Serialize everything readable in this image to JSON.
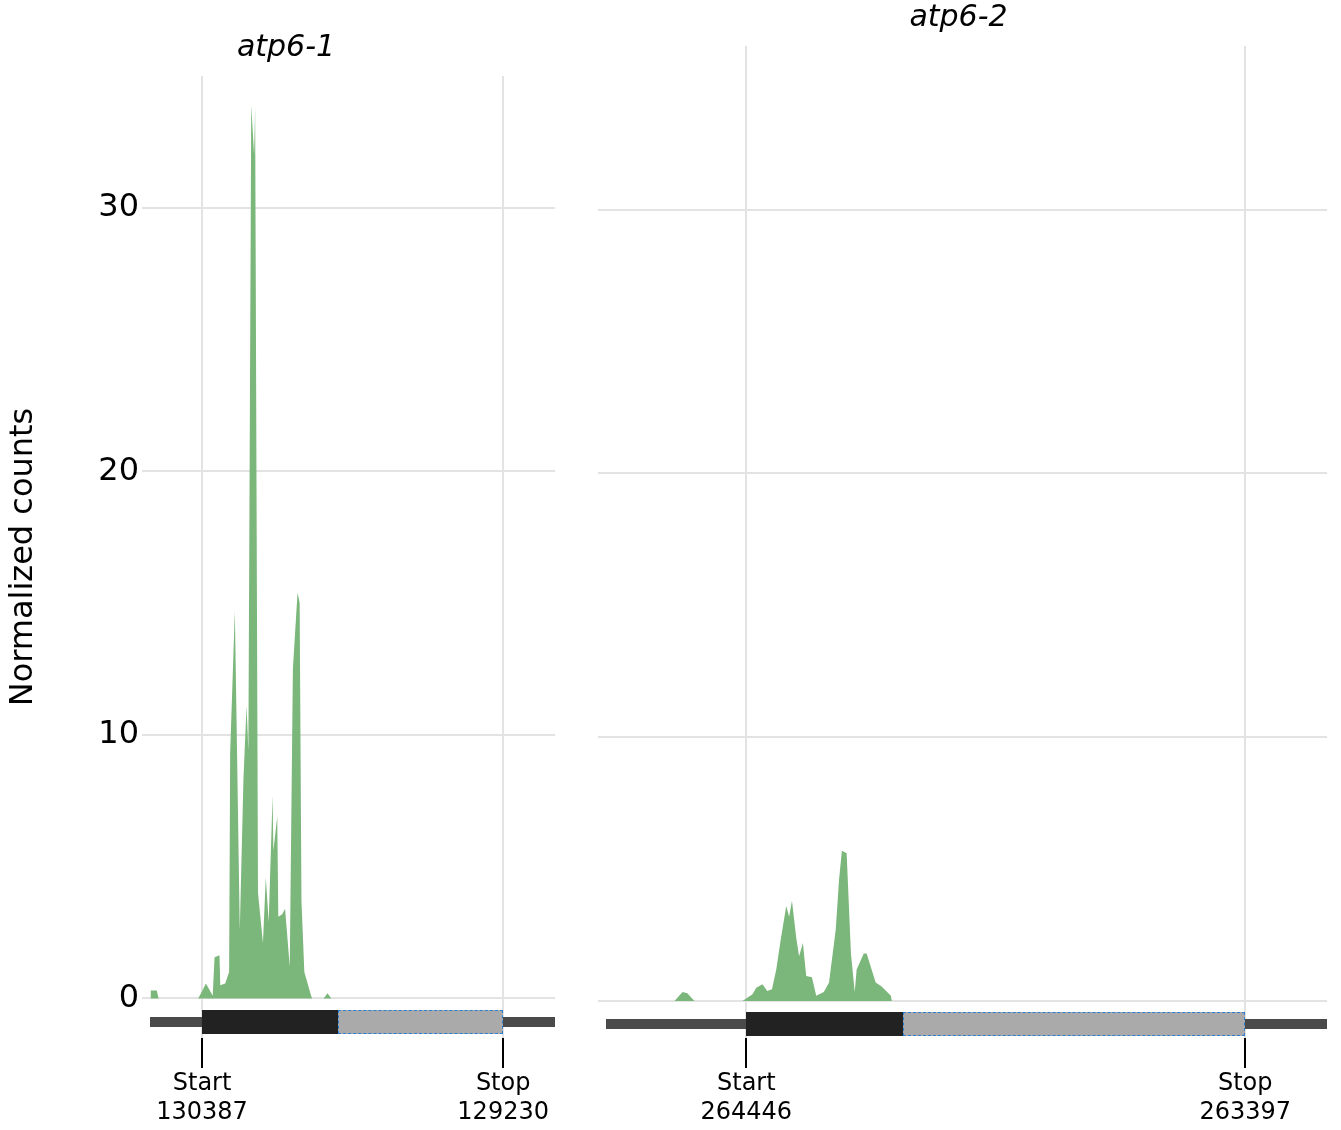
{
  "chart_data": [
    {
      "type": "area",
      "title": "atp6-1",
      "ylabel": "Normalized counts",
      "x": [
        130587,
        130584,
        130561,
        130554,
        130402,
        130391,
        130372,
        130346,
        130339,
        130320,
        130317,
        130298,
        130283,
        130279,
        130261,
        130254,
        130242,
        130228,
        130216,
        130209,
        130198,
        130187,
        130183,
        130172,
        130153,
        130142,
        130131,
        130116,
        130113,
        130098,
        130094,
        130079,
        130068,
        130050,
        130038,
        130020,
        130012,
        130005,
        129994,
        129968,
        129964,
        129920,
        129905,
        129890,
        129030
      ],
      "series": [
        {
          "color": "#7bb77a",
          "values": [
            0,
            0.3,
            0.3,
            0,
            0,
            0.2,
            0.57,
            0.1,
            1.56,
            1.64,
            0.5,
            0.57,
            1.0,
            9.3,
            14.7,
            10.3,
            2.6,
            8.3,
            11.1,
            9.4,
            33.9,
            32.0,
            33.8,
            4.0,
            2.1,
            4.6,
            2.9,
            7.7,
            5.6,
            6.9,
            3.1,
            3.2,
            3.4,
            1.2,
            12.5,
            15.4,
            15.0,
            3.7,
            1.0,
            0.1,
            0,
            0,
            0.2,
            0,
            0
          ]
        }
      ],
      "xlim": [
        130587,
        129030
      ],
      "xticks": [
        130387,
        129230
      ],
      "annotations": [
        "Start",
        "Stop"
      ],
      "ylim": [
        -1.5,
        35
      ],
      "yticks": [
        0,
        10,
        20,
        30
      ],
      "grid": true
    },
    {
      "type": "area",
      "title": "atp6-2",
      "x": [
        264741,
        264639,
        264597,
        264580,
        264570,
        264555,
        264454,
        264433,
        264425,
        264412,
        264402,
        264392,
        264383,
        264373,
        264362,
        264356,
        264350,
        264341,
        264335,
        264327,
        264320,
        264308,
        264299,
        264283,
        264272,
        264258,
        264251,
        264245,
        264235,
        264226,
        264218,
        264214,
        264199,
        264193,
        264174,
        264162,
        264142,
        264140,
        263298
      ],
      "series": [
        {
          "color": "#7bb77a",
          "values": [
            0,
            0,
            0,
            0.34,
            0.3,
            0,
            0,
            0.26,
            0.5,
            0.64,
            0.38,
            0.45,
            1.2,
            2.4,
            3.6,
            3.2,
            3.8,
            2.4,
            1.7,
            2.2,
            0.95,
            0.9,
            0.2,
            0.34,
            0.7,
            2.7,
            4.6,
            5.7,
            5.6,
            1.8,
            0.34,
            1.2,
            1.8,
            1.8,
            0.7,
            0.56,
            0.2,
            0,
            0
          ]
        }
      ],
      "xlim": [
        264741,
        263225
      ],
      "xticks": [
        264446,
        263397
      ],
      "annotations": [
        "Start",
        "Stop"
      ],
      "ylim": [
        -1.4,
        36.2
      ],
      "yticks": [
        0,
        10,
        20,
        30
      ],
      "grid": true,
      "tick_labels": "x"
    }
  ]
}
